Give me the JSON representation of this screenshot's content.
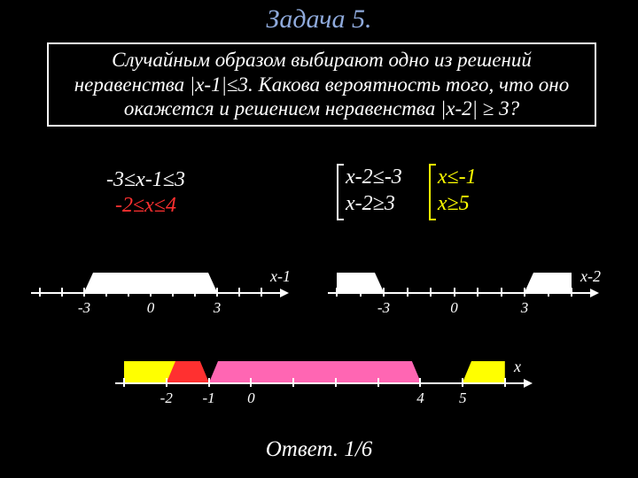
{
  "title": {
    "text": "Задача 5.",
    "color": "#8faadc",
    "fontsize": 30
  },
  "problem": {
    "text": "Случайным образом выбирают одно из решений неравенства |х-1|≤3. Какова вероятность того, что оно окажется и решением неравенства |х-2| ≥ 3?",
    "border_color": "#ffffff",
    "fontsize": 23
  },
  "ineq_left": {
    "line1": "-3≤х-1≤3",
    "line2": "-2≤х≤4",
    "line1_color": "#ffffff",
    "line2_color": "#ff3030"
  },
  "ineq_right": {
    "col1": {
      "line1": "х-2≤-3",
      "line2": "х-2≥3",
      "color": "#ffffff"
    },
    "col2": {
      "line1": "х≤-1",
      "line2": "х≥5",
      "color": "#ffff00"
    }
  },
  "axes": {
    "axis1": {
      "label": "х-1",
      "ticks": [
        -5,
        -4,
        -3,
        -2,
        -1,
        0,
        1,
        2,
        3,
        4,
        5
      ],
      "labeled_ticks": {
        "-3": "-3",
        "0": "0",
        "3": "3"
      },
      "interval": {
        "from": -3,
        "to": 3,
        "fill": "#ffffff"
      },
      "line_color": "#ffffff"
    },
    "axis2": {
      "label": "х-2",
      "ticks": [
        -5,
        -4,
        -3,
        -2,
        -1,
        0,
        1,
        2,
        3,
        4,
        5
      ],
      "labeled_ticks": {
        "-3": "-3",
        "0": "0",
        "3": "3"
      },
      "intervals": [
        {
          "from": -5,
          "to": -3,
          "fill": "#ffffff",
          "open_left": true
        },
        {
          "from": 3,
          "to": 5,
          "fill": "#ffffff",
          "open_right": true
        }
      ],
      "line_color": "#ffffff"
    },
    "axis3": {
      "label": "х",
      "ticks": [
        -3,
        -2,
        -1,
        0,
        1,
        2,
        3,
        4,
        5,
        6
      ],
      "labeled_ticks": {
        "-2": "-2",
        "-1": "-1",
        "0": "0",
        "4": "4",
        "5": "5"
      },
      "intervals": [
        {
          "from": -3,
          "to": -1,
          "fill": "#ffff00",
          "open_left": true
        },
        {
          "from": -2,
          "to": -1,
          "fill": "#ff3030"
        },
        {
          "from": -1,
          "to": 4,
          "fill": "#ff66b3"
        },
        {
          "from": 5,
          "to": 6,
          "fill": "#ffff00",
          "open_right": true
        }
      ],
      "line_color": "#ffffff"
    }
  },
  "answer": {
    "label": "Ответ.",
    "value": "1/6",
    "fontsize": 25
  },
  "colors": {
    "bg": "#000000",
    "text": "#ffffff",
    "title": "#8faadc"
  }
}
